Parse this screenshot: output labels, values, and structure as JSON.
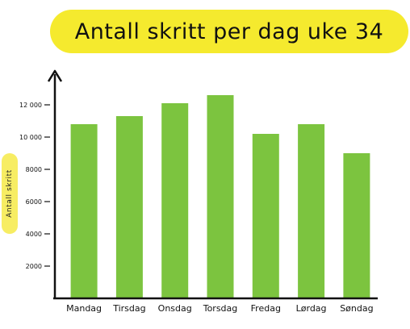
{
  "chart_data": {
    "type": "bar",
    "title": "Antall skritt per dag uke 34",
    "xlabel": "",
    "ylabel": "Antall skritt",
    "categories": [
      "Mandag",
      "Tirsdag",
      "Onsdag",
      "Torsdag",
      "Fredag",
      "Lørdag",
      "Søndag"
    ],
    "values": [
      10800,
      11300,
      12100,
      12600,
      10200,
      10800,
      9000
    ],
    "yticks": [
      "2000",
      "4000",
      "6000",
      "8000",
      "10 000",
      "12 000"
    ],
    "ylim": [
      0,
      14000
    ],
    "grid": false,
    "colors": {
      "bar": "#7cc43f",
      "title_bg": "#f5ea2e",
      "ylabel_bg": "#f7ed63",
      "axis": "#111111"
    }
  }
}
